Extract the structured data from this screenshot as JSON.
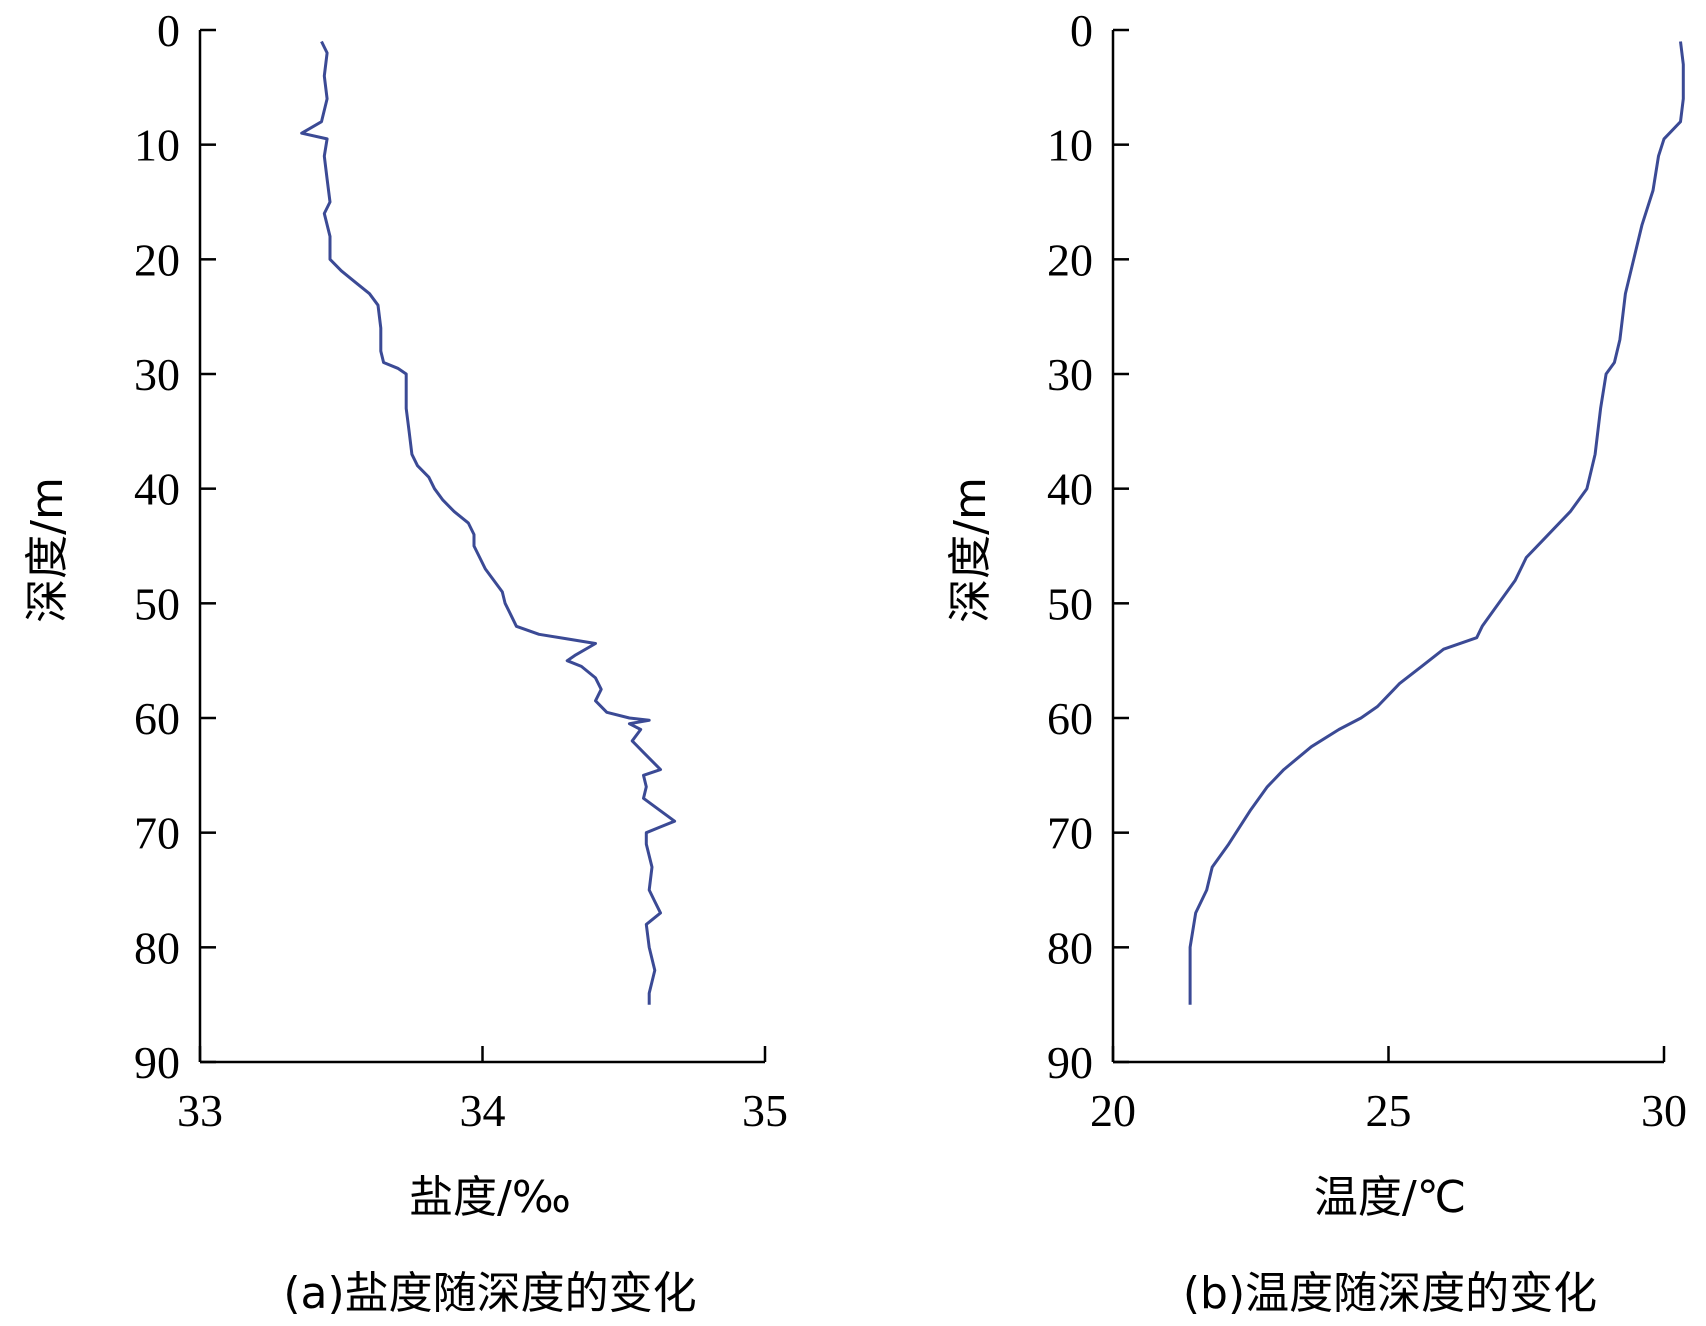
{
  "chart_data": [
    {
      "type": "line",
      "xlabel": "盐度/‰",
      "ylabel": "深度/m",
      "caption": "(a)盐度随深度的变化",
      "xlim": [
        33,
        35
      ],
      "ylim": [
        0,
        90
      ],
      "y_inverted": true,
      "x_ticks": [
        "33",
        "34",
        "35"
      ],
      "y_ticks": [
        "0",
        "10",
        "20",
        "30",
        "40",
        "50",
        "60",
        "70",
        "80",
        "90"
      ],
      "series": [
        {
          "color": "#3b4a95",
          "points": [
            [
              33.43,
              1
            ],
            [
              33.45,
              2
            ],
            [
              33.44,
              4
            ],
            [
              33.45,
              6
            ],
            [
              33.43,
              8
            ],
            [
              33.36,
              9
            ],
            [
              33.45,
              9.5
            ],
            [
              33.44,
              11
            ],
            [
              33.45,
              13
            ],
            [
              33.46,
              15
            ],
            [
              33.44,
              16
            ],
            [
              33.46,
              18
            ],
            [
              33.46,
              20
            ],
            [
              33.5,
              21
            ],
            [
              33.55,
              22
            ],
            [
              33.6,
              23
            ],
            [
              33.63,
              24
            ],
            [
              33.64,
              26
            ],
            [
              33.64,
              28
            ],
            [
              33.65,
              29
            ],
            [
              33.7,
              29.5
            ],
            [
              33.73,
              30
            ],
            [
              33.73,
              33
            ],
            [
              33.74,
              35
            ],
            [
              33.75,
              37
            ],
            [
              33.77,
              38
            ],
            [
              33.81,
              39
            ],
            [
              33.83,
              40
            ],
            [
              33.86,
              41
            ],
            [
              33.9,
              42
            ],
            [
              33.95,
              43
            ],
            [
              33.97,
              44
            ],
            [
              33.97,
              45
            ],
            [
              33.99,
              46
            ],
            [
              34.01,
              47
            ],
            [
              34.04,
              48
            ],
            [
              34.07,
              49
            ],
            [
              34.08,
              50
            ],
            [
              34.1,
              51
            ],
            [
              34.12,
              52
            ],
            [
              34.2,
              52.7
            ],
            [
              34.3,
              53.1
            ],
            [
              34.4,
              53.5
            ],
            [
              34.33,
              54.5
            ],
            [
              34.3,
              55
            ],
            [
              34.35,
              55.5
            ],
            [
              34.4,
              56.5
            ],
            [
              34.42,
              57.5
            ],
            [
              34.4,
              58.5
            ],
            [
              34.44,
              59.5
            ],
            [
              34.52,
              60
            ],
            [
              34.59,
              60.2
            ],
            [
              34.52,
              60.5
            ],
            [
              34.56,
              61
            ],
            [
              34.53,
              62
            ],
            [
              34.57,
              63
            ],
            [
              34.63,
              64.5
            ],
            [
              34.57,
              65
            ],
            [
              34.58,
              66
            ],
            [
              34.57,
              67
            ],
            [
              34.68,
              69
            ],
            [
              34.63,
              69.5
            ],
            [
              34.58,
              70
            ],
            [
              34.58,
              71
            ],
            [
              34.6,
              73
            ],
            [
              34.59,
              75
            ],
            [
              34.61,
              76
            ],
            [
              34.63,
              77
            ],
            [
              34.58,
              78
            ],
            [
              34.59,
              80
            ],
            [
              34.61,
              82
            ],
            [
              34.59,
              84
            ],
            [
              34.59,
              85
            ]
          ]
        }
      ]
    },
    {
      "type": "line",
      "xlabel": "温度/℃",
      "ylabel": "深度/m",
      "caption": "(b)温度随深度的变化",
      "xlim": [
        20,
        30
      ],
      "ylim": [
        0,
        90
      ],
      "y_inverted": true,
      "x_ticks": [
        "20",
        "25",
        "30"
      ],
      "y_ticks": [
        "0",
        "10",
        "20",
        "30",
        "40",
        "50",
        "60",
        "70",
        "80",
        "90"
      ],
      "series": [
        {
          "color": "#3b4a95",
          "points": [
            [
              30.3,
              1
            ],
            [
              30.35,
              3
            ],
            [
              30.35,
              6
            ],
            [
              30.3,
              8
            ],
            [
              30.0,
              9.5
            ],
            [
              29.9,
              11
            ],
            [
              29.8,
              14
            ],
            [
              29.6,
              17
            ],
            [
              29.45,
              20
            ],
            [
              29.3,
              23
            ],
            [
              29.2,
              27
            ],
            [
              29.1,
              29
            ],
            [
              28.95,
              30
            ],
            [
              28.85,
              33
            ],
            [
              28.75,
              37
            ],
            [
              28.6,
              40
            ],
            [
              28.3,
              42
            ],
            [
              27.8,
              44.5
            ],
            [
              27.5,
              46
            ],
            [
              27.3,
              48
            ],
            [
              27.0,
              50
            ],
            [
              26.7,
              52
            ],
            [
              26.6,
              53
            ],
            [
              26.0,
              54
            ],
            [
              25.6,
              55.5
            ],
            [
              25.2,
              57
            ],
            [
              24.8,
              59
            ],
            [
              24.5,
              60
            ],
            [
              24.1,
              61
            ],
            [
              23.6,
              62.5
            ],
            [
              23.1,
              64.5
            ],
            [
              22.8,
              66
            ],
            [
              22.5,
              68
            ],
            [
              22.3,
              69.5
            ],
            [
              22.1,
              71
            ],
            [
              21.8,
              73
            ],
            [
              21.7,
              75
            ],
            [
              21.5,
              77
            ],
            [
              21.4,
              80
            ],
            [
              21.4,
              85
            ]
          ]
        }
      ]
    }
  ]
}
